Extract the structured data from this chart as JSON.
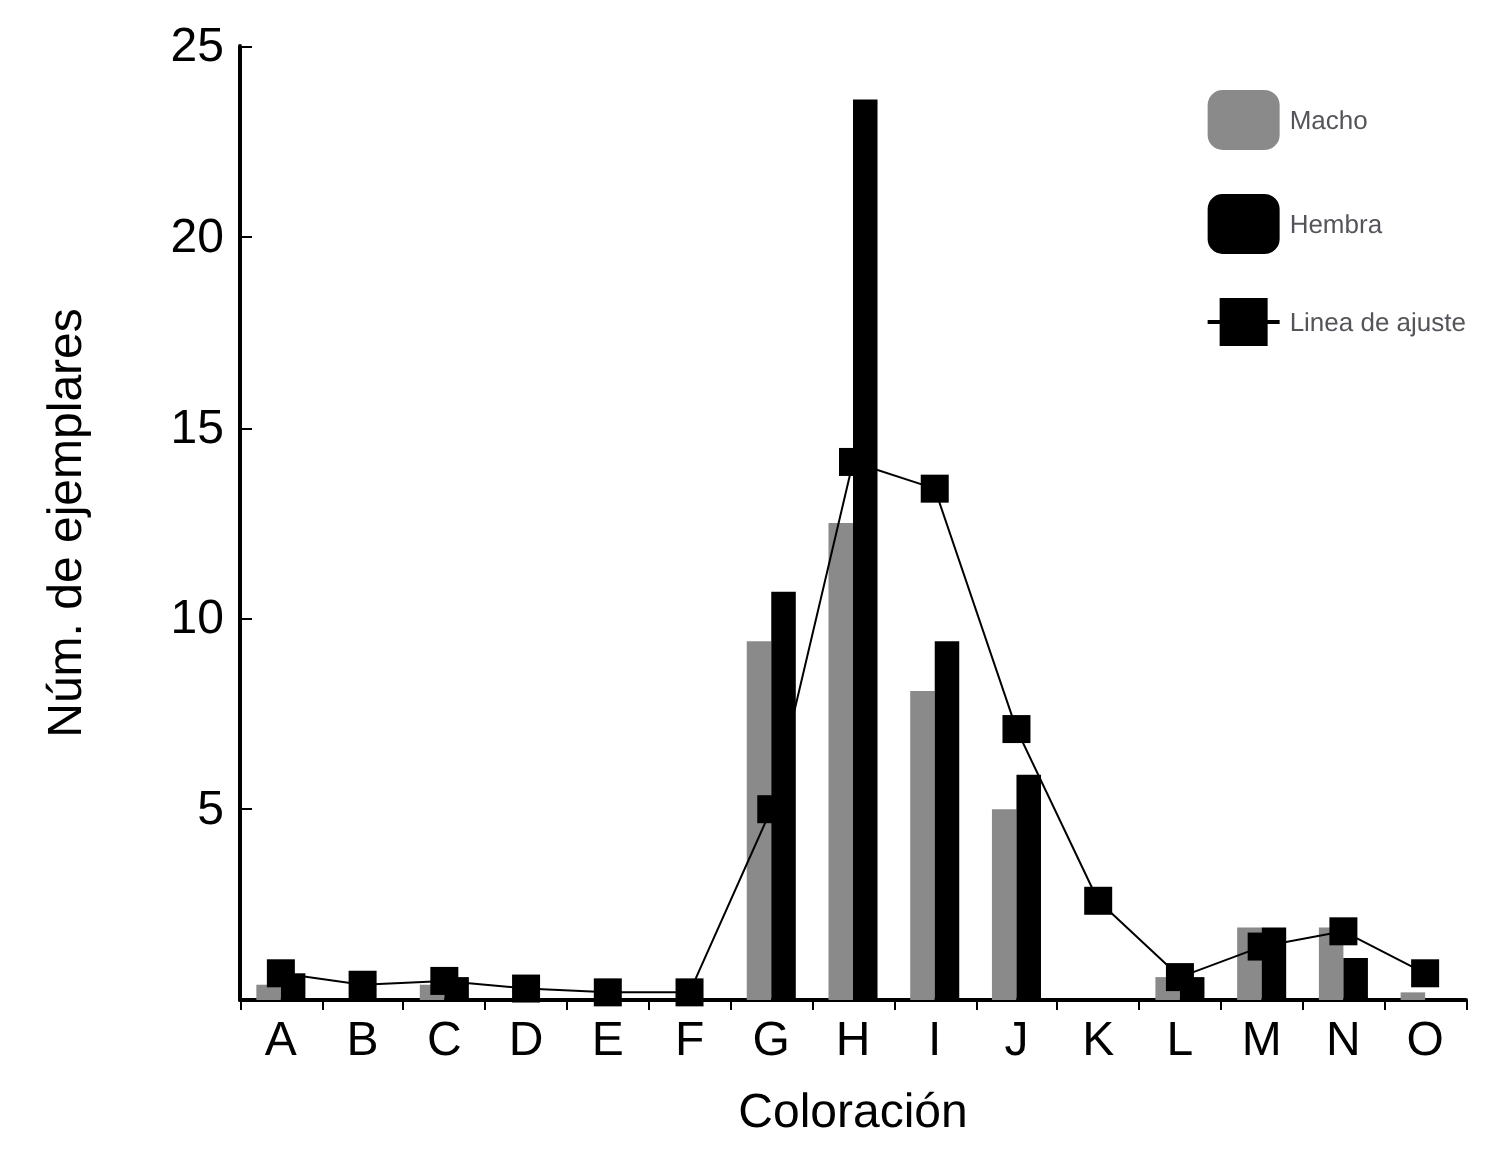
{
  "chart_data": {
    "type": "bar",
    "xlabel": "Coloración",
    "ylabel": "Núm. de ejemplares",
    "categories": [
      "A",
      "B",
      "C",
      "D",
      "E",
      "F",
      "G",
      "H",
      "I",
      "J",
      "K",
      "L",
      "M",
      "N",
      "O"
    ],
    "series": [
      {
        "name": "Macho",
        "color": "#8a8a8a",
        "values": [
          0.4,
          null,
          0.4,
          0,
          null,
          0,
          9.4,
          12.5,
          8.1,
          5.0,
          0,
          0.6,
          1.9,
          1.9,
          0.2
        ]
      },
      {
        "name": "Hembra",
        "color": "#000000",
        "values": [
          0.7,
          null,
          0.6,
          null,
          null,
          0,
          10.7,
          23.6,
          9.4,
          5.9,
          0,
          0.6,
          1.9,
          1.1,
          0
        ]
      },
      {
        "name": "Linea de ajuste",
        "type": "line",
        "color": "#000000",
        "marker": "square",
        "values": [
          0.7,
          0.4,
          0.5,
          0.3,
          0.2,
          0.2,
          5.0,
          14.1,
          13.4,
          7.1,
          2.6,
          0.6,
          1.4,
          1.8,
          0.7
        ]
      }
    ],
    "ylim": [
      0,
      25
    ],
    "yticks": [
      {
        "value": 0,
        "label": null
      },
      5,
      10,
      15,
      20,
      25
    ],
    "grid": false,
    "legend": "top right"
  }
}
